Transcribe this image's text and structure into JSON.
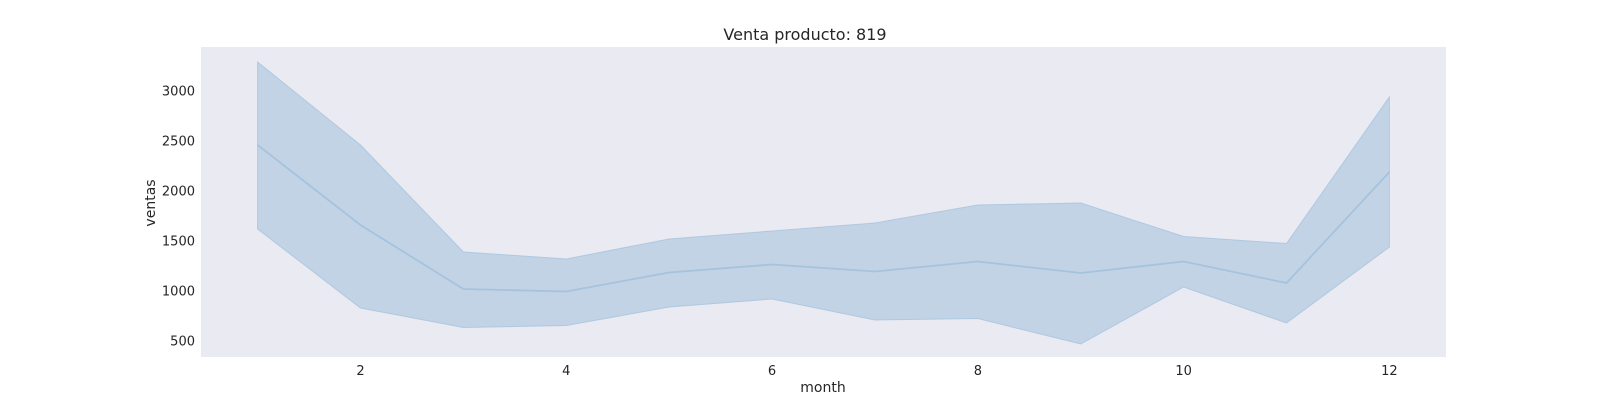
{
  "chart_data": {
    "type": "line",
    "title": "Venta producto: 819",
    "xlabel": "month",
    "ylabel": "ventas",
    "x": [
      1,
      2,
      3,
      4,
      5,
      6,
      7,
      8,
      9,
      10,
      11,
      12
    ],
    "series": [
      {
        "values": [
          2460,
          1660,
          1020,
          995,
          1185,
          1265,
          1195,
          1295,
          1180,
          1295,
          1080,
          2190
        ],
        "ci_lower": [
          1620,
          830,
          635,
          655,
          840,
          920,
          710,
          725,
          470,
          1040,
          680,
          1440
        ],
        "ci_upper": [
          3290,
          2460,
          1390,
          1320,
          1520,
          1600,
          1680,
          1860,
          1880,
          1545,
          1475,
          2940
        ]
      }
    ],
    "xticks": [
      2,
      4,
      6,
      8,
      10,
      12
    ],
    "yticks": [
      500,
      1000,
      1500,
      2000,
      2500,
      3000
    ],
    "xlim": [
      0.45,
      12.55
    ],
    "ylim": [
      340,
      3440
    ],
    "grid": false,
    "colors": {
      "plot_background": "#eaeaf2",
      "line": "#a6c3dd",
      "band": "#a6c3dd"
    }
  }
}
